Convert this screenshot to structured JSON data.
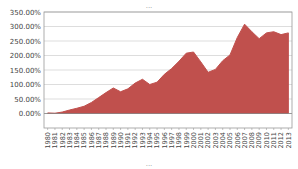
{
  "chart_data": {
    "type": "area",
    "x": [
      1980,
      1981,
      1982,
      1983,
      1984,
      1985,
      1986,
      1987,
      1988,
      1989,
      1990,
      1991,
      1992,
      1993,
      1994,
      1995,
      1996,
      1997,
      1998,
      1999,
      2000,
      2001,
      2002,
      2003,
      2004,
      2005,
      2006,
      2007,
      2008,
      2009,
      2010,
      2011,
      2012,
      2013
    ],
    "values": [
      0.02,
      0.01,
      0.05,
      0.12,
      0.18,
      0.25,
      0.38,
      0.55,
      0.72,
      0.88,
      0.75,
      0.85,
      1.05,
      1.18,
      1.0,
      1.08,
      1.35,
      1.55,
      1.8,
      2.08,
      2.12,
      1.78,
      1.42,
      1.52,
      1.82,
      2.02,
      2.62,
      3.08,
      2.82,
      2.58,
      2.78,
      2.82,
      2.72,
      2.78
    ],
    "color": "#C0504D",
    "xlim": [
      1979.5,
      2013.5
    ],
    "xticks": [
      1980,
      1981,
      1982,
      1983,
      1984,
      1985,
      1986,
      1987,
      1988,
      1989,
      1990,
      1991,
      1992,
      1993,
      1994,
      1995,
      1996,
      1997,
      1998,
      1999,
      2000,
      2001,
      2002,
      2003,
      2004,
      2005,
      2006,
      2007,
      2008,
      2009,
      2010,
      2011,
      2012,
      2013
    ],
    "ylim": [
      -0.5,
      3.5
    ],
    "yticks": [
      {
        "value": 0.0,
        "label": "0.00%"
      },
      {
        "value": 0.5,
        "label": "50.00%"
      },
      {
        "value": 1.0,
        "label": "100.00%"
      },
      {
        "value": 1.5,
        "label": "150.00%"
      },
      {
        "value": 2.0,
        "label": "200.00%"
      },
      {
        "value": 2.5,
        "label": "250.00%"
      },
      {
        "value": 3.0,
        "label": "300.00%"
      },
      {
        "value": 3.5,
        "label": "350.00%"
      }
    ],
    "grid": true,
    "annotations": [
      "...",
      "..."
    ]
  }
}
